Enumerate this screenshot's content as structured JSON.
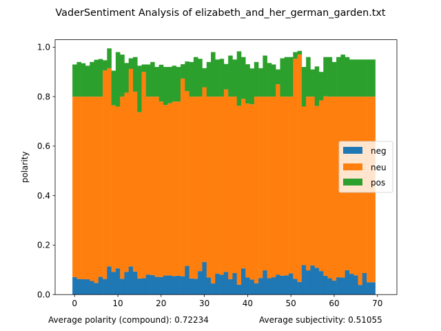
{
  "chart_data": {
    "type": "bar",
    "stacked": true,
    "title": "VaderSentiment Analysis of elizabeth_and_her_german_garden.txt",
    "xlabel": "",
    "ylabel": "polarity",
    "xlim": [
      -4.5,
      74.5
    ],
    "ylim": [
      0,
      1.03
    ],
    "xticks": [
      0,
      10,
      20,
      30,
      40,
      50,
      60,
      70
    ],
    "yticks": [
      0.0,
      0.2,
      0.4,
      0.6,
      0.8,
      1.0
    ],
    "xtick_labels": [
      "0",
      "10",
      "20",
      "30",
      "40",
      "50",
      "60",
      "70"
    ],
    "ytick_labels": [
      "0.0",
      "0.2",
      "0.4",
      "0.6",
      "0.8",
      "1.0"
    ],
    "grid": false,
    "legend_position": "center-right",
    "footer": {
      "left": "Average polarity (compound): 0.72234",
      "right": "Average subjectivity: 0.51055"
    },
    "series": [
      {
        "name": "neg",
        "color": "#1f77b4",
        "values": [
          0.071,
          0.063,
          0.062,
          0.062,
          0.055,
          0.047,
          0.072,
          0.063,
          0.114,
          0.092,
          0.106,
          0.064,
          0.092,
          0.114,
          0.093,
          0.065,
          0.066,
          0.081,
          0.079,
          0.072,
          0.071,
          0.077,
          0.077,
          0.075,
          0.076,
          0.074,
          0.116,
          0.065,
          0.064,
          0.095,
          0.132,
          0.069,
          0.045,
          0.085,
          0.08,
          0.092,
          0.062,
          0.087,
          0.04,
          0.106,
          0.069,
          0.061,
          0.046,
          0.067,
          0.098,
          0.066,
          0.07,
          0.08,
          0.076,
          0.078,
          0.086,
          0.064,
          0.051,
          0.119,
          0.098,
          0.118,
          0.108,
          0.095,
          0.076,
          0.066,
          0.057,
          0.07,
          0.069,
          0.099,
          0.084,
          0.078,
          0.039,
          0.087,
          0.05,
          0.05
        ]
      },
      {
        "name": "neu",
        "color": "#ff7f0e",
        "values": [
          0.729,
          0.737,
          0.738,
          0.738,
          0.745,
          0.753,
          0.728,
          0.843,
          0.801,
          0.673,
          0.654,
          0.736,
          0.724,
          0.798,
          0.727,
          0.672,
          0.834,
          0.719,
          0.721,
          0.728,
          0.709,
          0.689,
          0.696,
          0.705,
          0.704,
          0.799,
          0.706,
          0.735,
          0.736,
          0.705,
          0.706,
          0.731,
          0.755,
          0.715,
          0.72,
          0.737,
          0.738,
          0.713,
          0.723,
          0.685,
          0.703,
          0.708,
          0.754,
          0.733,
          0.702,
          0.734,
          0.73,
          0.77,
          0.724,
          0.722,
          0.714,
          0.889,
          0.919,
          0.641,
          0.702,
          0.682,
          0.654,
          0.69,
          0.725,
          0.734,
          0.743,
          0.73,
          0.731,
          0.701,
          0.716,
          0.722,
          0.761,
          0.713,
          0.75,
          0.75
        ]
      },
      {
        "name": "pos",
        "color": "#2ca02c",
        "values": [
          0.13,
          0.14,
          0.135,
          0.125,
          0.14,
          0.149,
          0.152,
          0.041,
          0.08,
          0.14,
          0.22,
          0.17,
          0.12,
          0.043,
          0.14,
          0.188,
          0.03,
          0.13,
          0.14,
          0.12,
          0.149,
          0.154,
          0.147,
          0.145,
          0.14,
          0.058,
          0.12,
          0.14,
          0.16,
          0.153,
          0.077,
          0.14,
          0.18,
          0.15,
          0.153,
          0.103,
          0.166,
          0.15,
          0.22,
          0.169,
          0.159,
          0.145,
          0.14,
          0.115,
          0.166,
          0.136,
          0.13,
          0.06,
          0.155,
          0.16,
          0.16,
          0.027,
          0.015,
          0.16,
          0.16,
          0.11,
          0.16,
          0.115,
          0.159,
          0.16,
          0.14,
          0.16,
          0.17,
          0.16,
          0.15,
          0.15,
          0.15,
          0.15,
          0.15,
          0.15
        ]
      }
    ]
  }
}
